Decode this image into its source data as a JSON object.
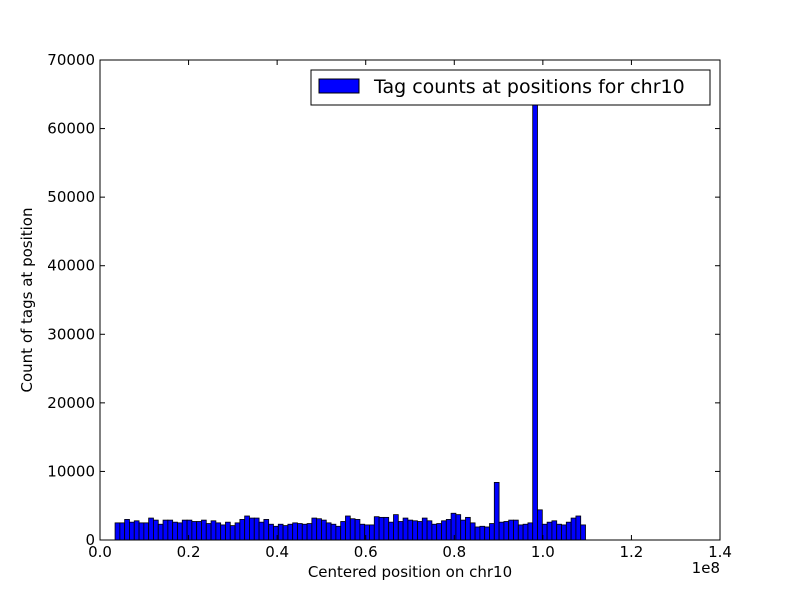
{
  "chart_data": {
    "type": "bar",
    "title": "",
    "xlabel": "Centered position on chr10",
    "ylabel": "Count of tags at position",
    "x_offset_label": "1e8",
    "xlim": [
      0.0,
      1.4
    ],
    "ylim": [
      0,
      70000
    ],
    "xticks": [
      "0.0",
      "0.2",
      "0.4",
      "0.6",
      "0.8",
      "1.0",
      "1.2",
      "1.4"
    ],
    "yticks": [
      "0",
      "10000",
      "20000",
      "30000",
      "40000",
      "50000",
      "60000",
      "70000"
    ],
    "grid": false,
    "legend": {
      "position": "top-right",
      "entries": [
        "Tag counts at positions for chr10"
      ]
    },
    "bar_color": "#0000ff",
    "bin_start": 0.034,
    "bin_width": 0.01084,
    "values": [
      2500,
      2500,
      3000,
      2600,
      2800,
      2500,
      2500,
      3200,
      2900,
      2300,
      2900,
      2900,
      2600,
      2500,
      2900,
      2900,
      2700,
      2700,
      2900,
      2400,
      2800,
      2500,
      2200,
      2600,
      2100,
      2500,
      3000,
      3500,
      3200,
      3200,
      2600,
      3000,
      2300,
      2000,
      2300,
      2100,
      2300,
      2500,
      2400,
      2300,
      2400,
      3200,
      3100,
      2900,
      2500,
      2300,
      2000,
      2700,
      3500,
      3100,
      3000,
      2300,
      2200,
      2200,
      3400,
      3300,
      3300,
      2600,
      3700,
      2700,
      3200,
      2900,
      2800,
      2700,
      3200,
      2800,
      2300,
      2400,
      2800,
      3000,
      3900,
      3700,
      2900,
      3300,
      2500,
      1900,
      2000,
      1900,
      2400,
      8400,
      2600,
      2700,
      2900,
      2900,
      2200,
      2300,
      2500,
      64000,
      4400,
      2300,
      2600,
      2800,
      2300,
      2200,
      2600,
      3200,
      3500,
      2200
    ]
  }
}
